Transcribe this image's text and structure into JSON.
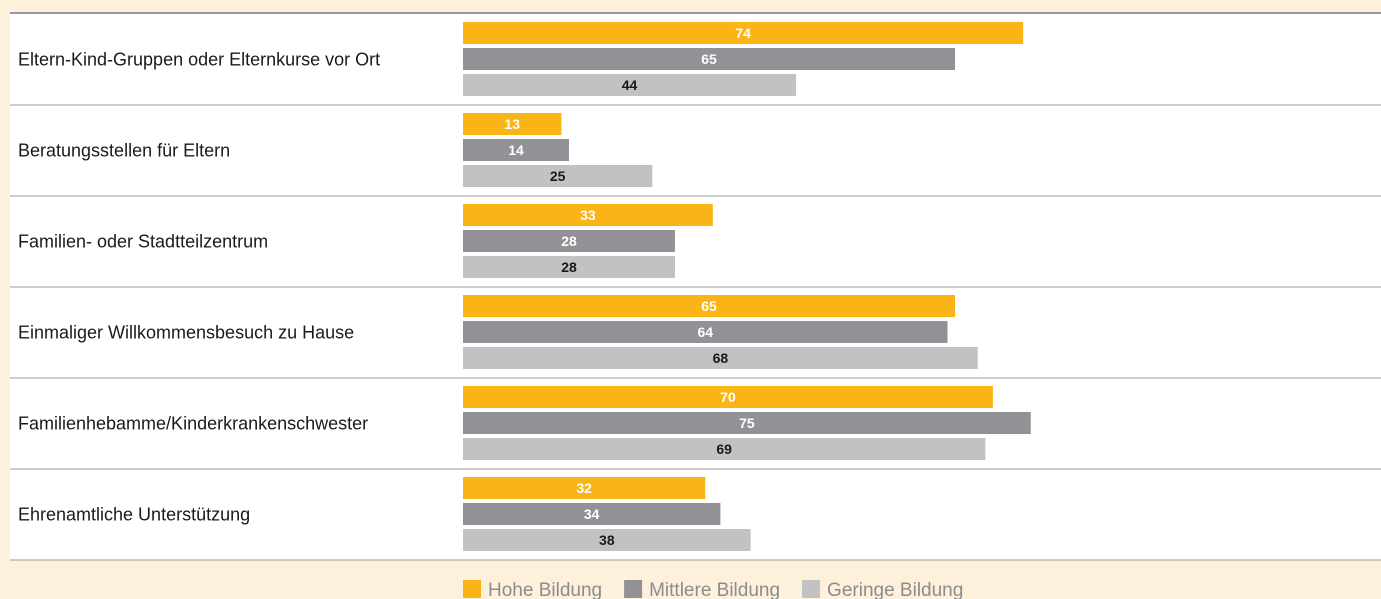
{
  "chart_data": {
    "type": "bar",
    "orientation": "horizontal",
    "title": "",
    "xlabel": "",
    "ylabel": "",
    "xlim": [
      0,
      100
    ],
    "grid": false,
    "legend_position": "bottom-center",
    "categories": [
      "Eltern-Kind-Gruppen oder Elternkurse vor Ort",
      "Beratungsstellen für Eltern",
      "Familien- oder Stadtteilzentrum",
      "Einmaliger Willkommensbesuch zu Hause",
      "Familienhebamme/Kinderkrankenschwester",
      "Ehrenamtliche Unterstützung"
    ],
    "series": [
      {
        "name": "Hohe Bildung",
        "color": "#fbb416",
        "label_color": "#ffffff",
        "values": [
          74,
          13,
          33,
          65,
          70,
          32
        ]
      },
      {
        "name": "Mittlere Bildung",
        "color": "#929195",
        "label_color": "#ffffff",
        "values": [
          65,
          14,
          28,
          64,
          75,
          34
        ]
      },
      {
        "name": "Geringe Bildung",
        "color": "#c2c2c4",
        "label_color": "#1a1a1a",
        "values": [
          44,
          25,
          28,
          68,
          69,
          38
        ]
      }
    ]
  },
  "colors": {
    "background": "#fdf1dc",
    "plot_background": "#ffffff",
    "separator": "#9a9a9a"
  }
}
